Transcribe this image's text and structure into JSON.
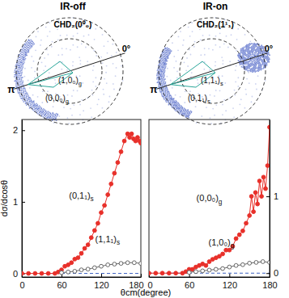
{
  "images": [
    {
      "title": "IR-off",
      "label": "CHD₂(0⁰₀)",
      "angle_labels": [
        "0°",
        "π"
      ],
      "ring_labels": [
        "(1,0₀)g",
        "(0,0₀)g"
      ]
    },
    {
      "title": "IR-on",
      "label": "CHD₂(1¹₁)",
      "angle_labels": [
        "0°",
        "π"
      ],
      "ring_labels": [
        "(1,1₁)s",
        "(0,1₁)s"
      ]
    }
  ],
  "chart_data": [
    {
      "type": "line",
      "y_label": "dσ/dcosθ",
      "x_label": "θcm(degree)",
      "xlim": [
        0,
        180
      ],
      "xticks": [
        0,
        60,
        120,
        180
      ],
      "ylim": [
        -0.05,
        2.15
      ],
      "yticks": [
        0,
        1,
        2
      ],
      "series": [
        {
          "name": "(0,1₁)s",
          "color": "#e8302a",
          "marker": "filled-circle",
          "x": [
            0,
            10,
            20,
            30,
            40,
            50,
            55,
            60,
            65,
            70,
            75,
            80,
            85,
            90,
            95,
            100,
            105,
            110,
            115,
            120,
            125,
            130,
            135,
            140,
            145,
            150,
            155,
            160,
            163,
            166,
            169,
            172,
            175,
            178,
            180
          ],
          "values": [
            0,
            0,
            0,
            0,
            0,
            0,
            0.02,
            0.05,
            0.1,
            0.12,
            0.15,
            0.2,
            0.22,
            0.28,
            0.35,
            0.4,
            0.5,
            0.6,
            0.7,
            0.85,
            0.95,
            1.1,
            1.25,
            1.4,
            1.55,
            1.7,
            1.85,
            1.95,
            1.9,
            1.95,
            1.88,
            1.85,
            1.9,
            1.85,
            1.82
          ]
        },
        {
          "name": "(1,1₁)s",
          "color": "#666666",
          "marker": "open-circle",
          "x": [
            60,
            70,
            80,
            90,
            100,
            110,
            120,
            130,
            140,
            150,
            160,
            170,
            180
          ],
          "values": [
            0.01,
            0.02,
            0.03,
            0.05,
            0.06,
            0.08,
            0.1,
            0.12,
            0.13,
            0.14,
            0.15,
            0.15,
            0.14
          ]
        }
      ]
    },
    {
      "type": "line",
      "xlim": [
        0,
        180
      ],
      "xticks": [
        0,
        60,
        120,
        180
      ],
      "ylim": [
        -0.05,
        2.0
      ],
      "yticks": [
        0,
        1
      ],
      "series": [
        {
          "name": "(0,0₀)g",
          "color": "#e8302a",
          "marker": "filled-circle",
          "x": [
            0,
            10,
            20,
            30,
            40,
            50,
            55,
            60,
            65,
            70,
            75,
            80,
            85,
            90,
            95,
            100,
            105,
            110,
            115,
            120,
            125,
            130,
            135,
            140,
            145,
            150,
            153,
            156,
            159,
            162,
            165,
            168,
            171,
            174,
            177,
            180
          ],
          "values": [
            0,
            0,
            0,
            0,
            0,
            0,
            0.02,
            0.05,
            0.05,
            0.08,
            0.1,
            0.12,
            0.1,
            0.15,
            0.18,
            0.2,
            0.22,
            0.25,
            0.3,
            0.3,
            0.35,
            0.45,
            0.5,
            0.55,
            0.65,
            0.75,
            1.0,
            0.8,
            1.05,
            0.9,
            1.2,
            1.0,
            1.25,
            1.1,
            1.4,
            1.9
          ]
        },
        {
          "name": "(1,0₀)g",
          "color": "#666666",
          "marker": "open-circle",
          "x": [
            60,
            70,
            80,
            90,
            100,
            110,
            120,
            130,
            140,
            150,
            160,
            170,
            180
          ],
          "values": [
            0.01,
            0.02,
            0.03,
            0.04,
            0.05,
            0.06,
            0.08,
            0.1,
            0.11,
            0.13,
            0.14,
            0.15,
            0.14
          ]
        }
      ]
    }
  ]
}
